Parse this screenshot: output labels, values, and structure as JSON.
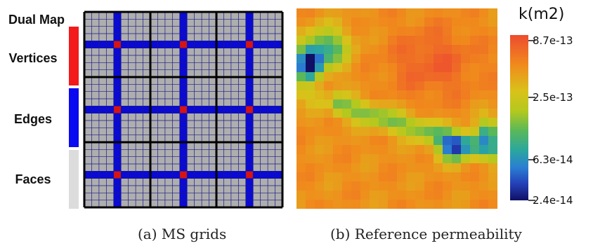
{
  "legend": {
    "title": "Dual Map",
    "items": [
      {
        "label": "Vertices",
        "color": "#f21a1a"
      },
      {
        "label": "Edges",
        "color": "#0a0af0"
      },
      {
        "label": "Faces",
        "color": "#dcdcdc"
      }
    ]
  },
  "grid_panel": {
    "caption": "(a) MS grids",
    "coarse_blocks": 3,
    "fine_per_block": 9,
    "colors": {
      "face": "#aeaeae",
      "edge": "#0a0ad2",
      "vertex": "#d61414",
      "fine_line": "#1a1a8c",
      "coarse_line": "#000000"
    }
  },
  "permeability_panel": {
    "caption": "(b) Reference permeability"
  },
  "colorbar": {
    "title": "k(m2)",
    "ticks": [
      "8.7e-13",
      "2.5e-13",
      "6.3e-14",
      "2.4e-14"
    ]
  }
}
